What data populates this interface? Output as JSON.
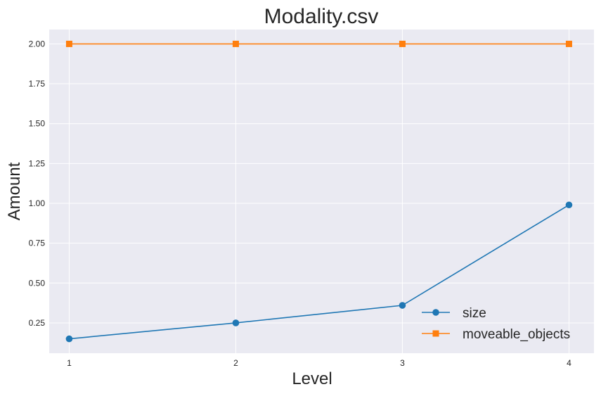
{
  "chart_data": {
    "type": "line",
    "title": "Modality.csv",
    "xlabel": "Level",
    "ylabel": "Amount",
    "x": [
      1,
      2,
      3,
      4
    ],
    "xticks": [
      "1",
      "2",
      "3",
      "4"
    ],
    "yticks": [
      "0.25",
      "0.50",
      "0.75",
      "1.00",
      "1.25",
      "1.50",
      "1.75",
      "2.00"
    ],
    "ylim": [
      0.06,
      2.09
    ],
    "xlim": [
      0.88,
      4.15
    ],
    "grid": true,
    "legend_position": "bottom-right",
    "series": [
      {
        "name": "size",
        "values": [
          0.15,
          0.25,
          0.36,
          0.99
        ],
        "color": "#1f77b4",
        "marker": "circle"
      },
      {
        "name": "moveable_objects",
        "values": [
          2.0,
          2.0,
          2.0,
          2.0
        ],
        "color": "#ff7f0e",
        "marker": "square"
      }
    ],
    "colors": {
      "plot_background": "#eaeaf2",
      "grid": "#ffffff"
    }
  }
}
